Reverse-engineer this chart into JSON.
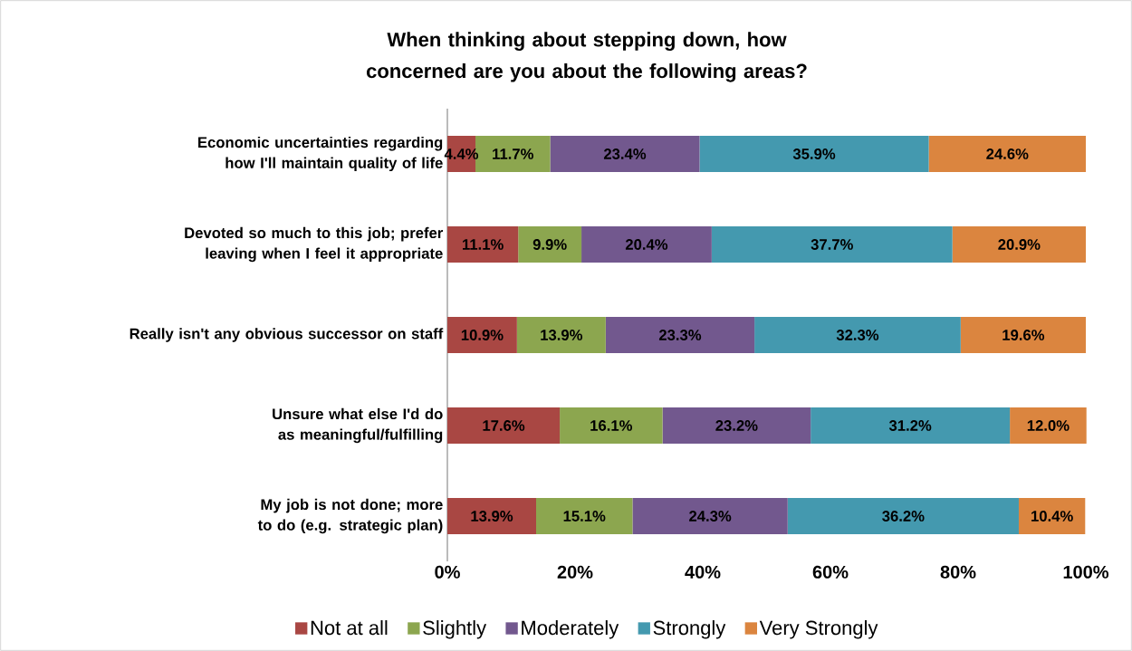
{
  "chart_data": {
    "type": "bar",
    "orientation": "horizontal",
    "stacked": true,
    "title": "When thinking about stepping down, how concerned are you about the following areas?",
    "categories": [
      "Economic uncertainties regarding how I'll maintain quality of life",
      "Devoted so much to this job; prefer leaving when I feel it appropriate",
      "Really isn't any obvious successor on staff",
      "Unsure what else I'd do as meaningful/fulfilling",
      "My job is not done; more to do (e.g. strategic plan)"
    ],
    "series": [
      {
        "name": "Not at all",
        "color": "#a94743",
        "values": [
          4.4,
          11.1,
          10.9,
          17.6,
          13.9
        ],
        "value_labels": [
          "4.4%",
          "11.1%",
          "10.9%",
          "17.6%",
          "13.9%"
        ]
      },
      {
        "name": "Slightly",
        "color": "#8ca64f",
        "values": [
          11.7,
          9.9,
          13.9,
          16.1,
          15.1
        ],
        "value_labels": [
          "11.7%",
          "9.9%",
          "13.9%",
          "16.1%",
          "15.1%"
        ]
      },
      {
        "name": "Moderately",
        "color": "#72588e",
        "values": [
          23.4,
          20.4,
          23.3,
          23.2,
          24.3
        ],
        "value_labels": [
          "23.4%",
          "20.4%",
          "23.3%",
          "23.2%",
          "24.3%"
        ]
      },
      {
        "name": "Strongly",
        "color": "#4499af",
        "values": [
          35.9,
          37.7,
          32.3,
          31.2,
          36.2
        ],
        "value_labels": [
          "35.9%",
          "37.7%",
          "32.3%",
          "31.2%",
          "36.2%"
        ]
      },
      {
        "name": "Very Strongly",
        "color": "#db853f",
        "values": [
          24.6,
          20.9,
          19.6,
          12.0,
          10.4
        ],
        "value_labels": [
          "24.6%",
          "20.9%",
          "19.6%",
          "12.0%",
          "10.4%"
        ]
      }
    ],
    "xlim": [
      0,
      100
    ],
    "xticks": [
      {
        "value": 0,
        "label": "0%"
      },
      {
        "value": 20,
        "label": "20%"
      },
      {
        "value": 40,
        "label": "40%"
      },
      {
        "value": 60,
        "label": "60%"
      },
      {
        "value": 80,
        "label": "80%"
      },
      {
        "value": 100,
        "label": "100%"
      }
    ],
    "legend": "bottom"
  }
}
